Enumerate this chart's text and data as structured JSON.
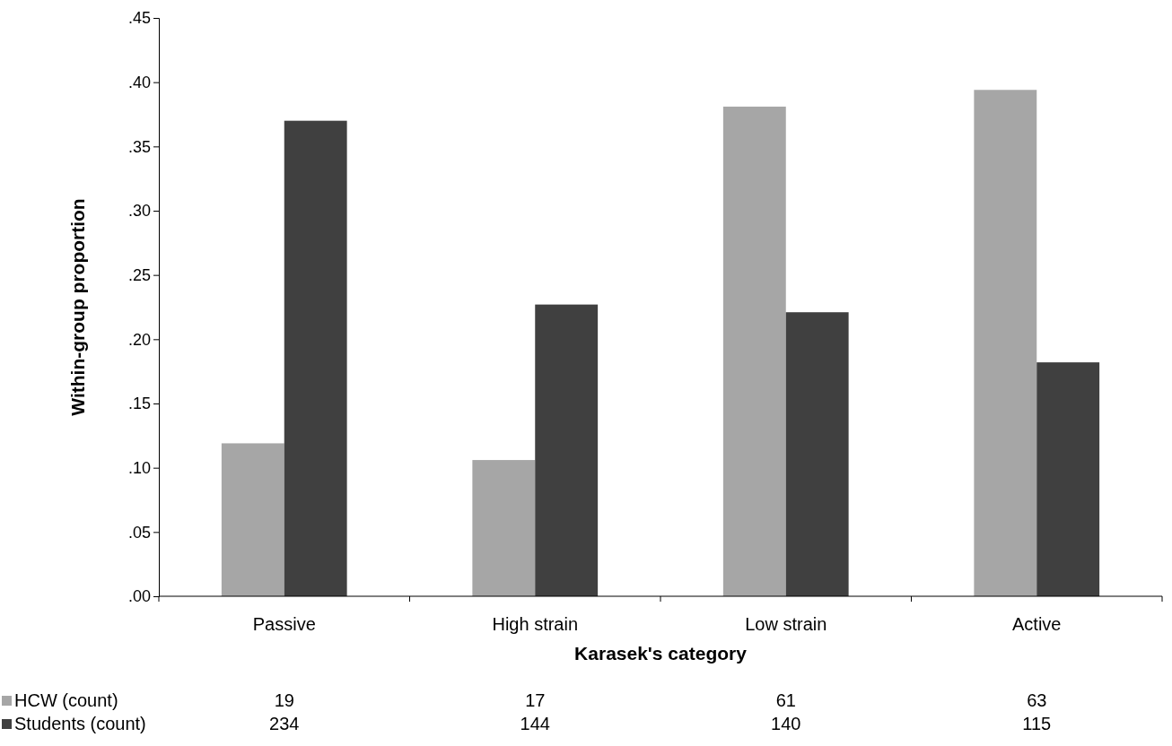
{
  "chart_data": {
    "type": "bar",
    "xlabel": "Karasek's category",
    "ylabel": "Within-group proportion",
    "categories": [
      "Passive",
      "High strain",
      "Low strain",
      "Active"
    ],
    "series": [
      {
        "name": "HCW (count)",
        "color": "#a6a6a6",
        "values": [
          0.119,
          0.106,
          0.381,
          0.394
        ]
      },
      {
        "name": "Students (count)",
        "color": "#404040",
        "values": [
          0.37,
          0.227,
          0.221,
          0.182
        ]
      }
    ],
    "annotations": [
      "19",
      "17",
      "61",
      "63",
      "234",
      "144",
      "140",
      "115"
    ],
    "ylim": [
      0,
      0.45
    ],
    "yticks": [
      {
        "value": 0,
        "label": ".00"
      },
      {
        "value": 0.05,
        "label": ".05"
      },
      {
        "value": 0.1,
        "label": ".10"
      },
      {
        "value": 0.15,
        "label": ".15"
      },
      {
        "value": 0.2,
        "label": ".20"
      },
      {
        "value": 0.25,
        "label": ".25"
      },
      {
        "value": 0.3,
        "label": ".30"
      },
      {
        "value": 0.35,
        "label": ".35"
      },
      {
        "value": 0.4,
        "label": ".40"
      },
      {
        "value": 0.45,
        "label": ".45"
      }
    ],
    "grid": false,
    "legend": "bottom"
  }
}
